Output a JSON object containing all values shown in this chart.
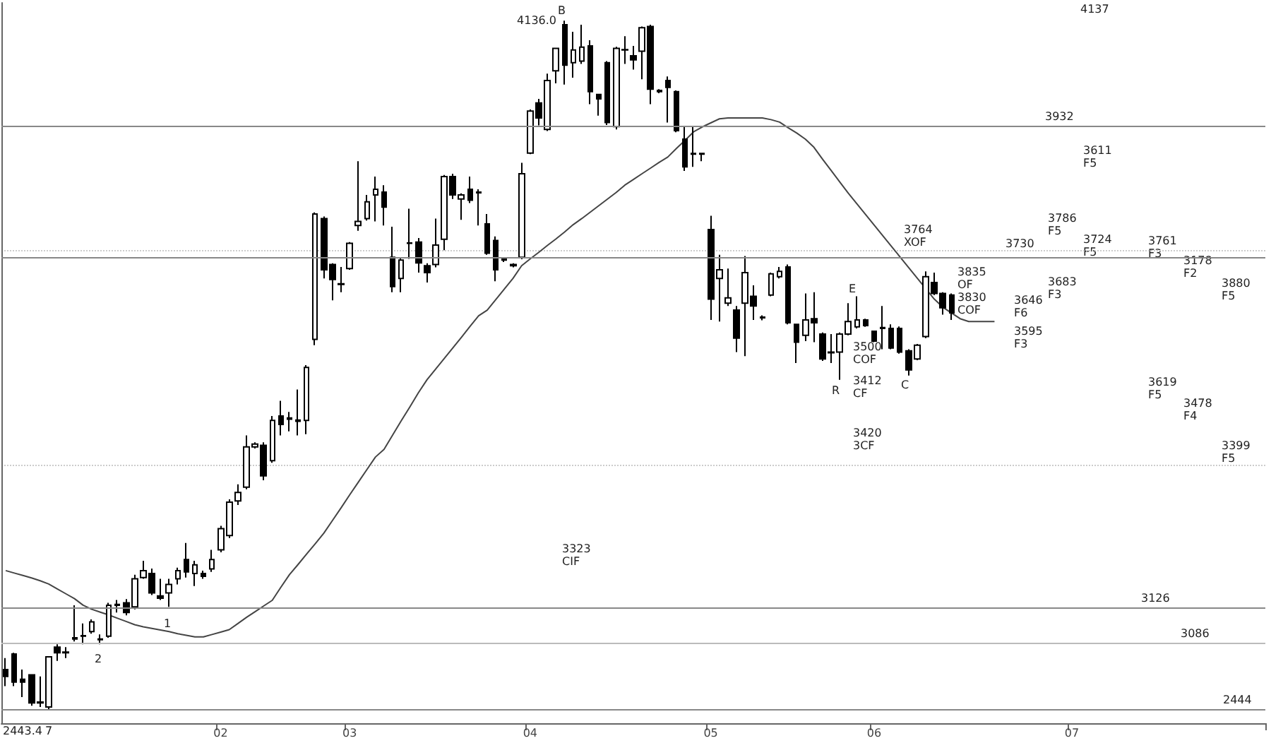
{
  "chart_data": {
    "type": "candlestick",
    "categories": [
      null,
      null,
      null,
      null,
      null,
      null,
      null,
      null,
      null,
      null,
      null,
      null,
      null,
      null,
      null,
      null,
      null,
      null,
      null,
      null,
      null,
      null,
      null,
      null,
      null,
      "02",
      null,
      null,
      null,
      null,
      null,
      null,
      null,
      null,
      null,
      null,
      null,
      null,
      null,
      null,
      "03",
      null,
      null,
      null,
      null,
      null,
      null,
      null,
      null,
      null,
      null,
      null,
      null,
      null,
      null,
      null,
      null,
      null,
      null,
      null,
      null,
      "04",
      null,
      null,
      null,
      null,
      null,
      null,
      null,
      null,
      null,
      null,
      null,
      null,
      null,
      null,
      null,
      null,
      null,
      null,
      null,
      null,
      "05",
      null,
      null,
      null,
      null,
      null,
      null,
      null,
      null,
      null,
      null,
      null,
      null,
      null,
      null,
      null,
      null,
      null,
      null,
      "06",
      null,
      null,
      null,
      null,
      null,
      null,
      null,
      null,
      null,
      null,
      null,
      null,
      null,
      null,
      null,
      null,
      null,
      null,
      null,
      null,
      null,
      null,
      "07",
      null,
      null,
      null,
      null,
      null,
      null,
      null,
      null,
      null,
      null,
      null,
      null,
      null,
      null,
      null,
      null,
      null,
      null,
      null,
      null,
      null,
      null
    ],
    "series": [
      {
        "color": "#000000",
        "ohlc": [
          [
            2542,
            2570,
            2501,
            2525
          ],
          [
            2580,
            2583,
            2501,
            2511
          ],
          [
            2518,
            2542,
            2474,
            2511
          ],
          [
            2529,
            2529,
            2453,
            2460
          ],
          [
            2462,
            2525,
            2450,
            2460
          ],
          [
            2450,
            2575,
            2443.4,
            2573
          ],
          [
            2597,
            2604,
            2563,
            2583
          ],
          [
            2585,
            2597,
            2570,
            2583
          ],
          [
            2620,
            2700,
            2611,
            2617
          ],
          [
            2625,
            2655,
            2604,
            2624
          ],
          [
            2635,
            2665,
            2630,
            2659
          ],
          [
            2615,
            2628,
            2604,
            2617
          ],
          [
            2624,
            2706,
            2620,
            2700
          ],
          [
            2700,
            2713,
            2682,
            2702
          ],
          [
            2706,
            2715,
            2675,
            2682
          ],
          [
            2696,
            2775,
            2690,
            2765
          ],
          [
            2768,
            2809,
            2765,
            2785
          ],
          [
            2778,
            2790,
            2725,
            2730
          ],
          [
            2723,
            2765,
            2713,
            2717
          ],
          [
            2730,
            2765,
            2696,
            2751
          ],
          [
            2765,
            2792,
            2751,
            2785
          ],
          [
            2812,
            2853,
            2768,
            2782
          ],
          [
            2778,
            2809,
            2747,
            2799
          ],
          [
            2778,
            2785,
            2765,
            2771
          ],
          [
            2789,
            2836,
            2782,
            2812
          ],
          [
            2836,
            2895,
            2830,
            2888
          ],
          [
            2871,
            2960,
            2865,
            2953
          ],
          [
            2956,
            2997,
            2946,
            2977
          ],
          [
            2990,
            3117,
            2985,
            3089
          ],
          [
            3089,
            3100,
            3085,
            3096
          ],
          [
            3093,
            3100,
            3007,
            3018
          ],
          [
            3055,
            3165,
            3050,
            3154
          ],
          [
            3165,
            3202,
            3117,
            3144
          ],
          [
            3160,
            3175,
            3127,
            3157
          ],
          [
            3152,
            3230,
            3117,
            3155
          ],
          [
            3154,
            3290,
            3120,
            3284
          ],
          [
            3353,
            3665,
            3339,
            3661
          ],
          [
            3650,
            3655,
            3503,
            3524
          ],
          [
            3537,
            3540,
            3449,
            3500
          ],
          [
            3490,
            3531,
            3469,
            3488
          ],
          [
            3527,
            3592,
            3524,
            3589
          ],
          [
            3633,
            3791,
            3620,
            3643
          ],
          [
            3650,
            3708,
            3645,
            3691
          ],
          [
            3708,
            3753,
            3643,
            3722
          ],
          [
            3715,
            3732,
            3633,
            3678
          ],
          [
            3555,
            3630,
            3469,
            3483
          ],
          [
            3503,
            3552,
            3469,
            3548
          ],
          [
            3590,
            3674,
            3551,
            3589
          ],
          [
            3592,
            3602,
            3517,
            3541
          ],
          [
            3534,
            3540,
            3493,
            3517
          ],
          [
            3537,
            3650,
            3530,
            3585
          ],
          [
            3599,
            3757,
            3572,
            3753
          ],
          [
            3753,
            3760,
            3698,
            3708
          ],
          [
            3698,
            3712,
            3647,
            3708
          ],
          [
            3722,
            3753,
            3688,
            3695
          ],
          [
            3713,
            3722,
            3633,
            3715
          ],
          [
            3637,
            3661,
            3561,
            3565
          ],
          [
            3596,
            3606,
            3496,
            3524
          ],
          [
            3550,
            3555,
            3543,
            3548
          ],
          [
            3534,
            3540,
            3530,
            3537
          ],
          [
            3555,
            3787,
            3550,
            3760
          ],
          [
            3811,
            3918,
            3808,
            3914
          ],
          [
            3934,
            3944,
            3879,
            3897
          ],
          [
            3869,
            4006,
            3865,
            3989
          ],
          [
            4013,
            4070,
            3982,
            4068
          ],
          [
            4126,
            4136.0,
            3979,
            4027
          ],
          [
            4033,
            4109,
            3996,
            4064
          ],
          [
            4037,
            4126,
            4030,
            4071
          ],
          [
            4074,
            4088,
            3931,
            3962
          ],
          [
            3955,
            3955,
            3903,
            3944
          ],
          [
            4033,
            4037,
            3880,
            3886
          ],
          [
            3876,
            4072,
            3869,
            4068
          ],
          [
            4065,
            4098,
            4030,
            4064
          ],
          [
            4050,
            4074,
            4016,
            4040
          ],
          [
            4061,
            4122,
            3992,
            4119
          ],
          [
            4122,
            4126,
            3931,
            3968
          ],
          [
            3962,
            3968,
            3958,
            3965
          ],
          [
            3989,
            3999,
            3886,
            3972
          ],
          [
            3962,
            3965,
            3862,
            3866
          ],
          [
            3845,
            3876,
            3767,
            3777
          ],
          [
            3810,
            3876,
            3777,
            3808
          ],
          [
            3808,
            3811,
            3791,
            3810
          ],
          [
            3623,
            3657,
            3401,
            3452
          ],
          [
            3503,
            3561,
            3397,
            3524
          ],
          [
            3442,
            3527,
            3435,
            3455
          ],
          [
            3425,
            3435,
            3322,
            3356
          ],
          [
            3442,
            3558,
            3312,
            3517
          ],
          [
            3459,
            3486,
            3401,
            3435
          ],
          [
            3408,
            3412,
            3400,
            3406
          ],
          [
            3462,
            3517,
            3459,
            3514
          ],
          [
            3507,
            3531,
            3503,
            3520
          ],
          [
            3531,
            3537,
            3390,
            3394
          ],
          [
            3390,
            3390,
            3295,
            3346
          ],
          [
            3363,
            3466,
            3349,
            3401
          ],
          [
            3404,
            3469,
            3346,
            3394
          ],
          [
            3366,
            3370,
            3300,
            3305
          ],
          [
            3320,
            3366,
            3295,
            3322
          ],
          [
            3322,
            3370,
            3254,
            3366
          ],
          [
            3366,
            3442,
            3363,
            3397
          ],
          [
            3384,
            3459,
            3380,
            3401
          ],
          [
            3401,
            3404,
            3384,
            3387
          ],
          [
            3373,
            3375,
            3346,
            3349
          ],
          [
            3382,
            3435,
            3329,
            3380
          ],
          [
            3380,
            3390,
            3329,
            3332
          ],
          [
            3380,
            3385,
            3318,
            3322
          ],
          [
            3325,
            3329,
            3264,
            3278
          ],
          [
            3305,
            3342,
            3302,
            3339
          ],
          [
            3360,
            3520,
            3356,
            3507
          ],
          [
            3493,
            3517,
            3462,
            3466
          ],
          [
            3466,
            3469,
            3414,
            3431
          ],
          [
            3462,
            3466,
            3401,
            3418
          ],
          null,
          null,
          null,
          null,
          null,
          null,
          null,
          null,
          null,
          null,
          null,
          null,
          null,
          null,
          null,
          null,
          null,
          null,
          null,
          null,
          null,
          null,
          null,
          null,
          null,
          null,
          null,
          null,
          null,
          null,
          null,
          null,
          null,
          null,
          null,
          null
        ]
      },
      {
        "type": "line",
        "color": "#444444",
        "values": [
          2785,
          2779,
          2773,
          2767,
          2760,
          2752,
          2740,
          2728,
          2716,
          2700,
          2690,
          2683,
          2676,
          2668,
          2660,
          2652,
          2647,
          2643,
          2639,
          2635,
          2630,
          2626,
          2622,
          2622,
          2628,
          2634,
          2640,
          2655,
          2670,
          2684,
          2698,
          2712,
          2744,
          2775,
          2800,
          2826,
          2851,
          2877,
          2908,
          2939,
          2971,
          3002,
          3033,
          3064,
          3083,
          3118,
          3153,
          3187,
          3222,
          3254,
          3280,
          3306,
          3332,
          3358,
          3385,
          3411,
          3425,
          3451,
          3477,
          3503,
          3534,
          3551,
          3567,
          3584,
          3600,
          3617,
          3635,
          3650,
          3666,
          3682,
          3698,
          3714,
          3732,
          3746,
          3760,
          3774,
          3788,
          3801,
          3822,
          3842,
          3863,
          3875,
          3885,
          3895,
          3897,
          3897,
          3897,
          3897,
          3897,
          3893,
          3887,
          3873,
          3860,
          3845,
          3825,
          3796,
          3768,
          3740,
          3712,
          3686,
          3660,
          3634,
          3608,
          3582,
          3556,
          3530,
          3504,
          3478,
          3452,
          3432,
          3418,
          3404,
          3397,
          3397,
          3397,
          3397,
          null,
          null,
          null,
          null,
          null,
          null,
          null,
          null,
          null,
          null,
          null,
          null,
          null,
          null,
          null,
          null,
          null,
          null,
          null,
          null,
          null,
          null,
          null,
          null,
          null,
          null,
          null,
          null,
          null,
          null,
          null
        ]
      }
    ],
    "ylim": [
      2410,
      4180
    ],
    "yticks": [
      {
        "value": 3044,
        "label": null
      },
      {
        "value": 3572,
        "label": null
      }
    ],
    "grid": "y",
    "tick_labels": "x",
    "marker": "none",
    "line_style": "solid",
    "ref_lines": [
      {
        "axis": "y",
        "value": 3876,
        "color": "#888888"
      },
      {
        "axis": "y",
        "value": 3556,
        "color": "#888888"
      },
      {
        "axis": "y",
        "value": 2693,
        "color": "#888888"
      },
      {
        "axis": "y",
        "value": 2607,
        "color": "#bbbbbb"
      },
      {
        "axis": "y",
        "value": 2443.4,
        "color": "#888888"
      }
    ],
    "annotations": [
      "4136.0",
      "2443.4",
      "B",
      "1",
      "2",
      "7",
      "R",
      "C",
      "E",
      "3764\nXOF",
      "3835\nOF",
      "3830\nCOF",
      "3500\nCOF",
      "3412\nCF",
      "3420\n3CF",
      "3323\nCIF",
      "3646\nF6",
      "3595\nF3",
      "3683\nF3",
      "3786\nF5",
      "3611\nF5",
      "3724\nF5",
      "4137",
      "3761\nF3",
      "3178\nF2",
      "3880\nF5",
      "3619\nF5",
      "3478\nF4",
      "3399\nF5",
      "3932",
      "3730",
      "3126",
      "3086",
      "2444"
    ]
  }
}
